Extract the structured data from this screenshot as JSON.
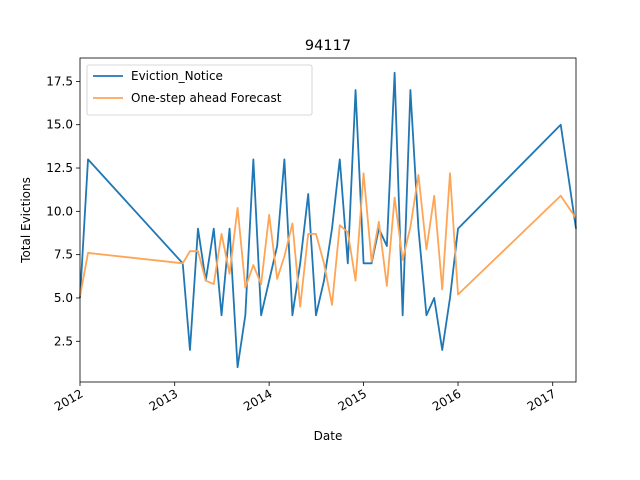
{
  "chart_data": {
    "type": "line",
    "title": "94117",
    "xlabel": "Date",
    "ylabel": "Total Evictions",
    "xlim": [
      "2012-01-01",
      "2017-04-01"
    ],
    "ylim": [
      0.15,
      18.85
    ],
    "x_ticks": [
      {
        "date": "2012-01-01",
        "label": "2012"
      },
      {
        "date": "2013-01-01",
        "label": "2013"
      },
      {
        "date": "2014-01-01",
        "label": "2014"
      },
      {
        "date": "2015-01-01",
        "label": "2015"
      },
      {
        "date": "2016-01-01",
        "label": "2016"
      },
      {
        "date": "2017-01-01",
        "label": "2017"
      }
    ],
    "y_ticks": [
      {
        "value": 2.5,
        "label": "2.5"
      },
      {
        "value": 5.0,
        "label": "5.0"
      },
      {
        "value": 7.5,
        "label": "7.5"
      },
      {
        "value": 10.0,
        "label": "10.0"
      },
      {
        "value": 12.5,
        "label": "12.5"
      },
      {
        "value": 15.0,
        "label": "15.0"
      },
      {
        "value": 17.5,
        "label": "17.5"
      }
    ],
    "legend_position": "top-left",
    "grid": false,
    "series": [
      {
        "name": "Eviction_Notice",
        "color": "#1f77b4",
        "points": [
          [
            "2012-01-01",
            5
          ],
          [
            "2012-02-01",
            13
          ],
          [
            "2013-02-01",
            7
          ],
          [
            "2013-03-01",
            2
          ],
          [
            "2013-04-01",
            9
          ],
          [
            "2013-05-01",
            6
          ],
          [
            "2013-06-01",
            9
          ],
          [
            "2013-07-01",
            4
          ],
          [
            "2013-08-01",
            9
          ],
          [
            "2013-09-01",
            1
          ],
          [
            "2013-10-01",
            4
          ],
          [
            "2013-11-01",
            13
          ],
          [
            "2013-12-01",
            4
          ],
          [
            "2014-01-01",
            6
          ],
          [
            "2014-02-01",
            8
          ],
          [
            "2014-03-01",
            13
          ],
          [
            "2014-04-01",
            4
          ],
          [
            "2014-05-01",
            7
          ],
          [
            "2014-06-01",
            11
          ],
          [
            "2014-07-01",
            4
          ],
          [
            "2014-08-01",
            6
          ],
          [
            "2014-09-01",
            9
          ],
          [
            "2014-10-01",
            13
          ],
          [
            "2014-11-01",
            7
          ],
          [
            "2014-12-01",
            17
          ],
          [
            "2015-01-01",
            7
          ],
          [
            "2015-02-01",
            7
          ],
          [
            "2015-03-01",
            9
          ],
          [
            "2015-04-01",
            8
          ],
          [
            "2015-05-01",
            18
          ],
          [
            "2015-06-01",
            4
          ],
          [
            "2015-07-01",
            17
          ],
          [
            "2015-08-01",
            9
          ],
          [
            "2015-09-01",
            4
          ],
          [
            "2015-10-01",
            5
          ],
          [
            "2015-11-01",
            2
          ],
          [
            "2015-12-01",
            5
          ],
          [
            "2016-01-01",
            9
          ],
          [
            "2017-02-01",
            15
          ],
          [
            "2017-04-01",
            9
          ]
        ]
      },
      {
        "name": "One-step ahead Forecast",
        "color": "#ffa556",
        "points": [
          [
            "2012-01-01",
            5.1
          ],
          [
            "2012-02-01",
            7.6
          ],
          [
            "2013-02-01",
            7.0
          ],
          [
            "2013-03-01",
            7.7
          ],
          [
            "2013-04-01",
            7.7
          ],
          [
            "2013-05-01",
            6.0
          ],
          [
            "2013-06-01",
            5.8
          ],
          [
            "2013-07-01",
            8.7
          ],
          [
            "2013-08-01",
            6.4
          ],
          [
            "2013-09-01",
            10.2
          ],
          [
            "2013-10-01",
            5.6
          ],
          [
            "2013-11-01",
            6.9
          ],
          [
            "2013-12-01",
            5.8
          ],
          [
            "2014-01-01",
            9.8
          ],
          [
            "2014-02-01",
            6.1
          ],
          [
            "2014-03-01",
            7.4
          ],
          [
            "2014-04-01",
            9.3
          ],
          [
            "2014-05-01",
            4.5
          ],
          [
            "2014-06-01",
            8.7
          ],
          [
            "2014-07-01",
            8.7
          ],
          [
            "2014-08-01",
            7.0
          ],
          [
            "2014-09-01",
            4.6
          ],
          [
            "2014-10-01",
            9.2
          ],
          [
            "2014-11-01",
            8.8
          ],
          [
            "2014-12-01",
            6.0
          ],
          [
            "2015-01-01",
            12.2
          ],
          [
            "2015-02-01",
            7.1
          ],
          [
            "2015-03-01",
            9.4
          ],
          [
            "2015-04-01",
            5.7
          ],
          [
            "2015-05-01",
            10.8
          ],
          [
            "2015-06-01",
            7.2
          ],
          [
            "2015-07-01",
            9.1
          ],
          [
            "2015-08-01",
            12.1
          ],
          [
            "2015-09-01",
            7.8
          ],
          [
            "2015-10-01",
            10.9
          ],
          [
            "2015-11-01",
            5.5
          ],
          [
            "2015-12-01",
            12.2
          ],
          [
            "2016-01-01",
            5.2
          ],
          [
            "2017-02-01",
            10.9
          ],
          [
            "2017-04-01",
            9.6
          ]
        ]
      }
    ]
  }
}
